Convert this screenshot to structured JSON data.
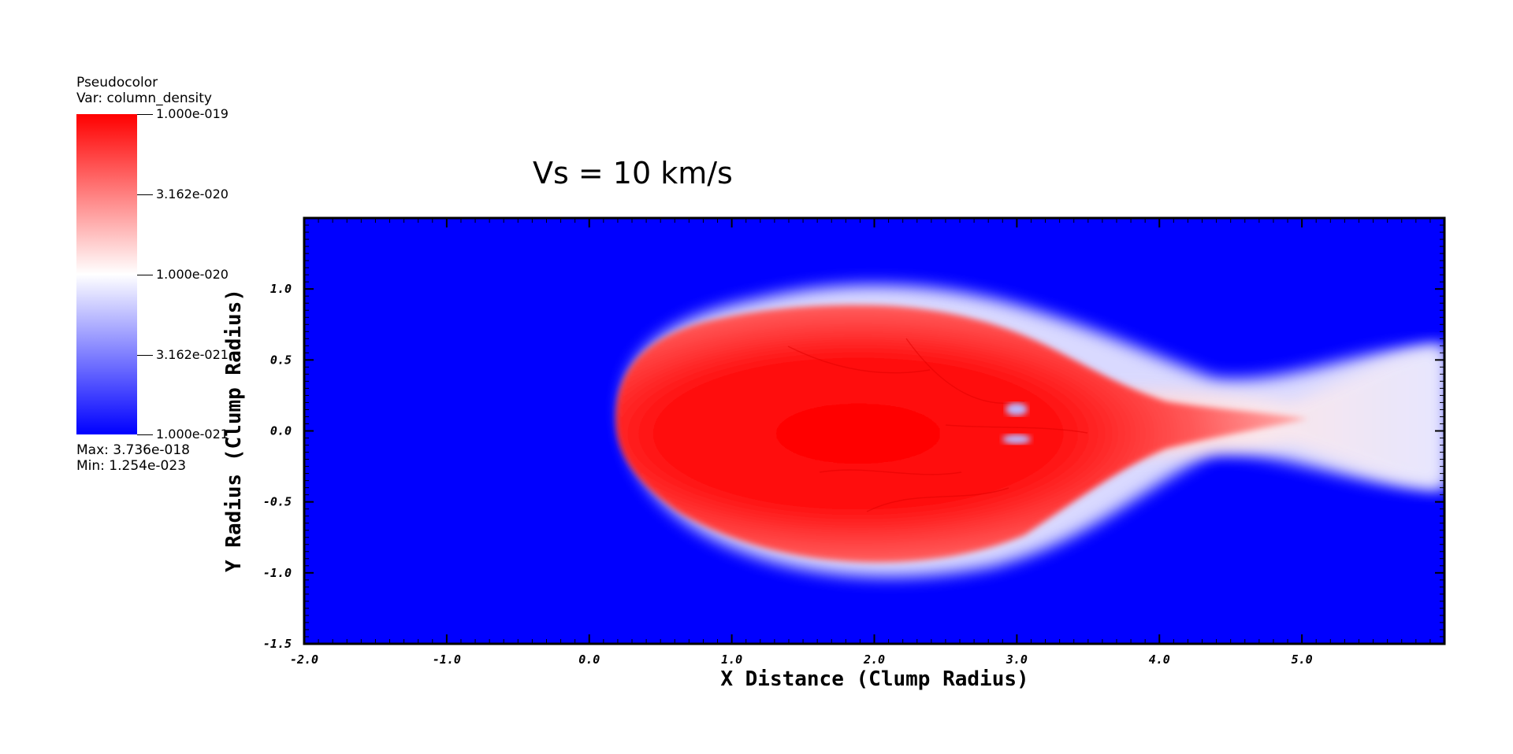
{
  "legend": {
    "plot_type": "Pseudocolor",
    "var_label": "Var: column_density",
    "ticks": [
      "1.000e-019",
      "3.162e-020",
      "1.000e-020",
      "3.162e-021",
      "1.000e-021"
    ],
    "max_label": "Max:  3.736e-018",
    "min_label": "Min:  1.254e-023",
    "colors": {
      "high": "#ff0000",
      "mid": "#ffffff",
      "low": "#0000ff"
    }
  },
  "chart_data": {
    "type": "heatmap",
    "title": "Vs = 10 km/s",
    "xlabel": "X Distance (Clump Radius)",
    "ylabel": "Y Radius (Clump Radius)",
    "xlim": [
      -2.0,
      6.0
    ],
    "ylim": [
      -1.5,
      1.5
    ],
    "x_ticks": [
      "-2.0",
      "-1.0",
      "0.0",
      "1.0",
      "2.0",
      "3.0",
      "4.0",
      "5.0"
    ],
    "x_tick_values": [
      -2.0,
      -1.0,
      0.0,
      1.0,
      2.0,
      3.0,
      4.0,
      5.0
    ],
    "y_ticks": [
      "1.0",
      "0.5",
      "0.0",
      "-0.5",
      "-1.0",
      "-1.5"
    ],
    "y_tick_values": [
      1.0,
      0.5,
      0.0,
      -0.5,
      -1.0,
      -1.5
    ],
    "colormap": "blue-white-red",
    "color_scale": "log",
    "background_color": "#0000ff"
  }
}
